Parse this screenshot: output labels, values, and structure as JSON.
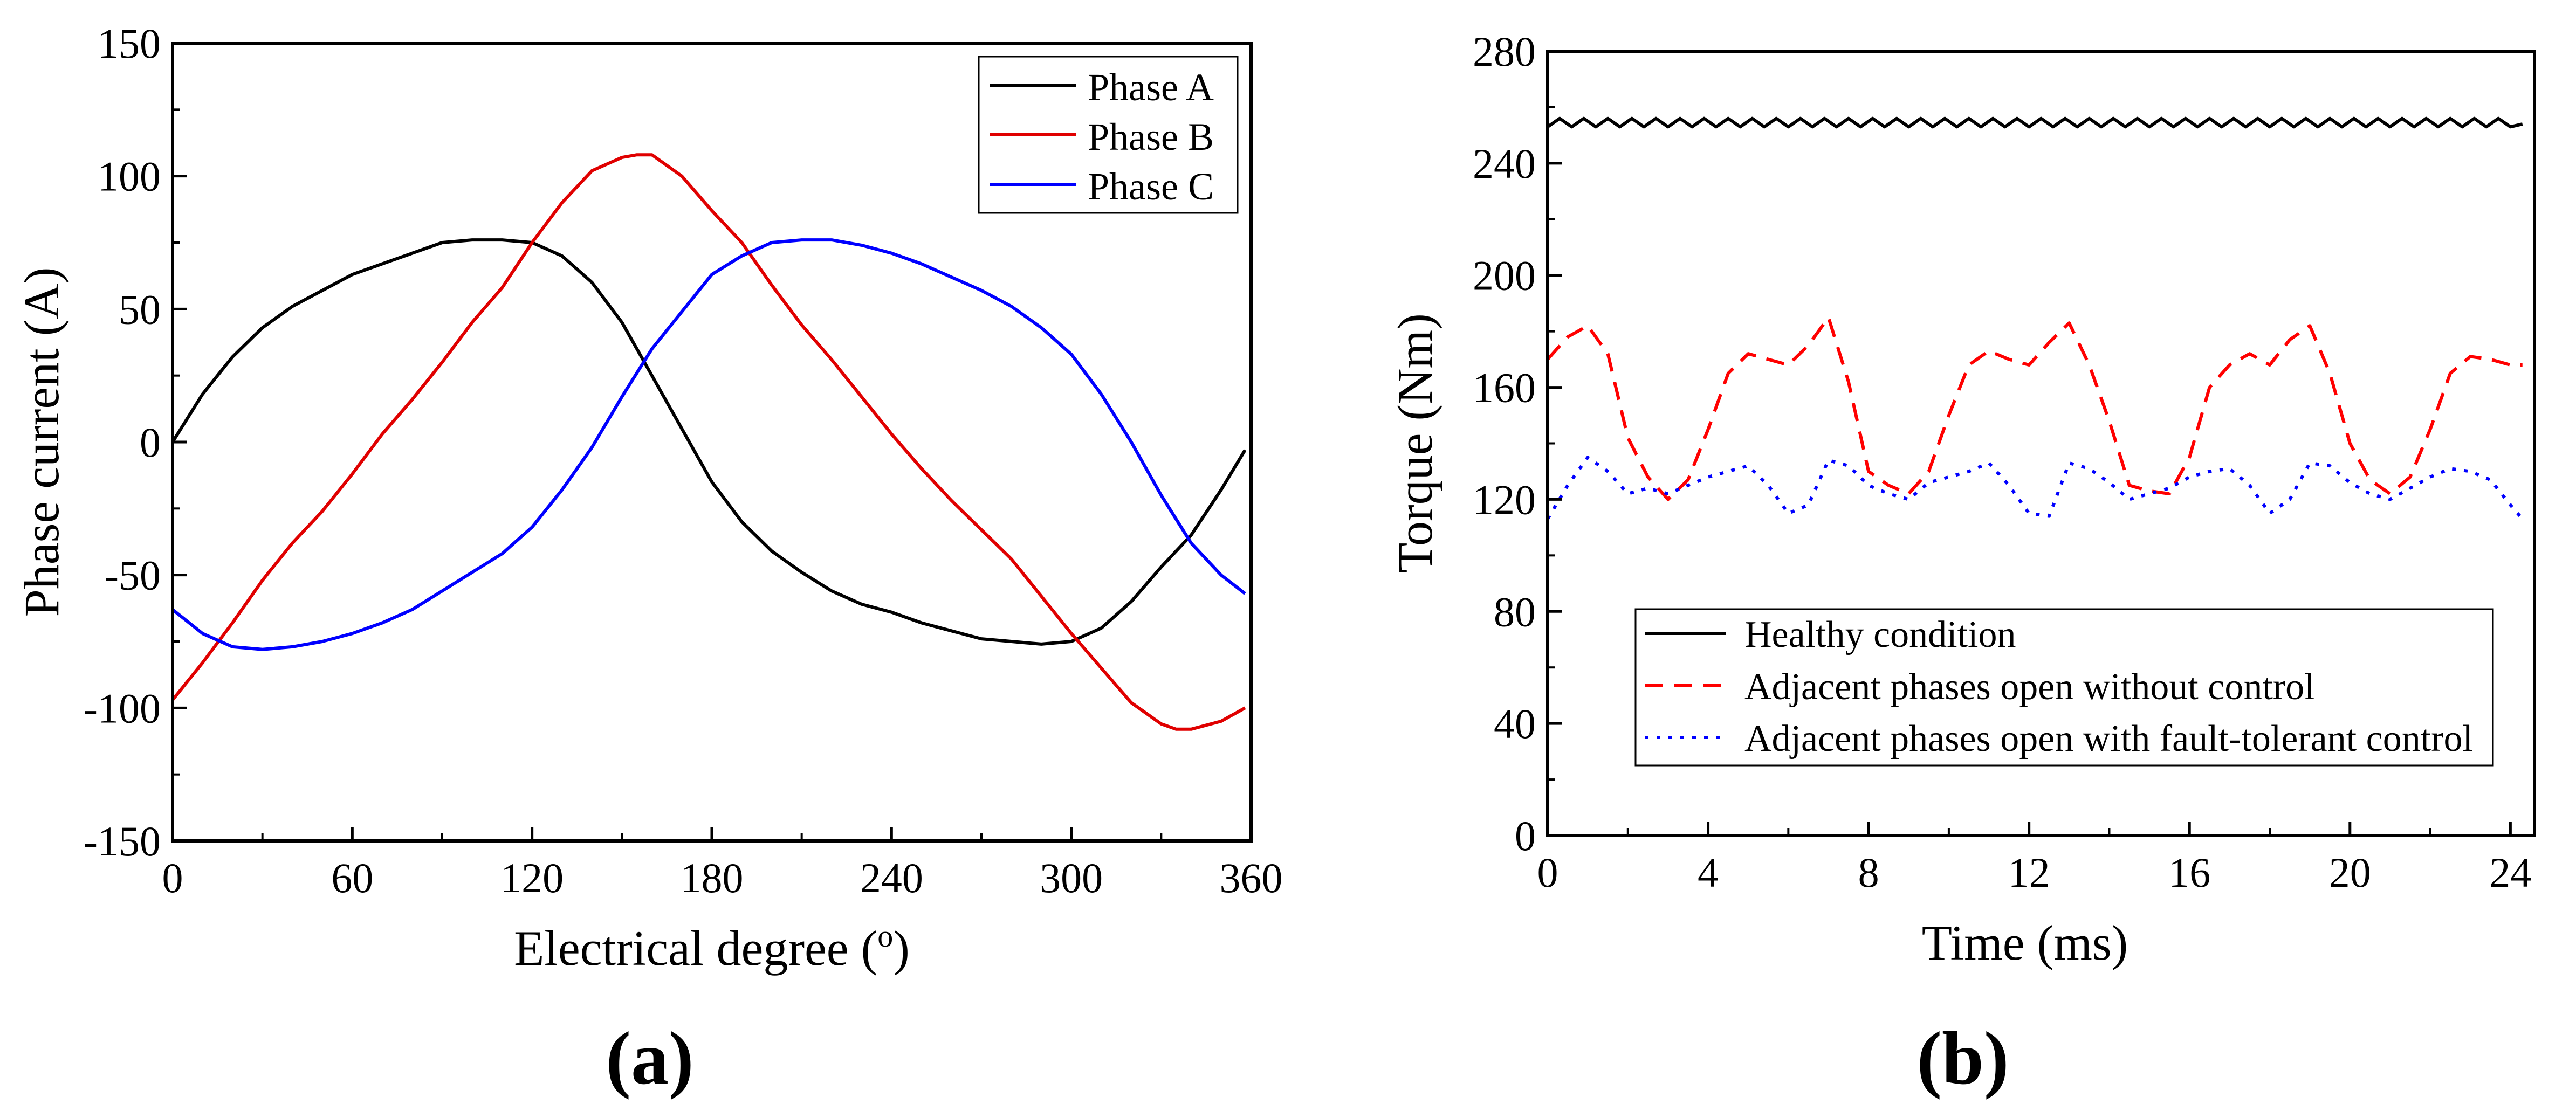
{
  "chart_data": [
    {
      "type": "line",
      "panel_label": "(a)",
      "title": "",
      "xlabel": "Electrical degree (",
      "xlabel_super": "o",
      "xlabel_end": ")",
      "ylabel": "Phase current (A)",
      "xlim": [
        0,
        360
      ],
      "ylim": [
        -150,
        150
      ],
      "xticks": [
        0,
        60,
        120,
        180,
        240,
        300,
        360
      ],
      "yticks": [
        -150,
        -100,
        -50,
        0,
        50,
        100,
        150
      ],
      "xtick_labels": [
        "0",
        "60",
        "120",
        "180",
        "240",
        "300",
        "360"
      ],
      "ytick_labels": [
        "-150",
        "-100",
        "-50",
        "0",
        "50",
        "100",
        "150"
      ],
      "grid": false,
      "legend": {
        "position": "top-right",
        "entries": [
          "Phase A",
          "Phase B",
          "Phase C"
        ]
      },
      "series": [
        {
          "name": "Phase A",
          "color": "#000000",
          "dash": "solid",
          "x": [
            0,
            10,
            20,
            30,
            40,
            50,
            60,
            75,
            90,
            100,
            110,
            120,
            130,
            140,
            150,
            160,
            170,
            180,
            190,
            200,
            210,
            220,
            230,
            240,
            250,
            260,
            270,
            280,
            290,
            300,
            310,
            320,
            330,
            340,
            350,
            358
          ],
          "values": [
            0,
            18,
            32,
            43,
            51,
            57,
            63,
            69,
            75,
            76,
            76,
            75,
            70,
            60,
            45,
            25,
            5,
            -15,
            -30,
            -41,
            -49,
            -56,
            -61,
            -64,
            -68,
            -71,
            -74,
            -75,
            -76,
            -75,
            -70,
            -60,
            -47,
            -35,
            -18,
            -3
          ]
        },
        {
          "name": "Phase B",
          "color": "#e00000",
          "dash": "solid",
          "x": [
            0,
            10,
            20,
            30,
            40,
            50,
            60,
            70,
            80,
            90,
            100,
            110,
            120,
            130,
            140,
            150,
            155,
            160,
            170,
            180,
            190,
            200,
            210,
            220,
            230,
            240,
            250,
            260,
            270,
            280,
            290,
            300,
            310,
            320,
            330,
            335,
            340,
            350,
            358
          ],
          "values": [
            -97,
            -83,
            -68,
            -52,
            -38,
            -26,
            -12,
            3,
            16,
            30,
            45,
            58,
            75,
            90,
            102,
            107,
            108,
            108,
            100,
            87,
            75,
            59,
            44,
            31,
            17,
            3,
            -10,
            -22,
            -33,
            -44,
            -58,
            -72,
            -85,
            -98,
            -106,
            -108,
            -108,
            -105,
            -100
          ]
        },
        {
          "name": "Phase C",
          "color": "#0000ff",
          "dash": "solid",
          "x": [
            0,
            10,
            20,
            30,
            40,
            50,
            60,
            70,
            80,
            90,
            100,
            110,
            120,
            130,
            140,
            150,
            160,
            170,
            180,
            190,
            200,
            210,
            220,
            230,
            240,
            250,
            260,
            270,
            280,
            290,
            300,
            310,
            320,
            330,
            340,
            350,
            358
          ],
          "values": [
            -63,
            -72,
            -77,
            -78,
            -77,
            -75,
            -72,
            -68,
            -63,
            -56,
            -49,
            -42,
            -32,
            -18,
            -2,
            17,
            35,
            49,
            63,
            70,
            75,
            76,
            76,
            74,
            71,
            67,
            62,
            57,
            51,
            43,
            33,
            18,
            0,
            -20,
            -38,
            -50,
            -57
          ]
        }
      ]
    },
    {
      "type": "line",
      "panel_label": "(b)",
      "title": "",
      "xlabel": "Time (ms)",
      "ylabel": "Torque (Nm)",
      "xlim": [
        0,
        24.6
      ],
      "ylim": [
        0,
        280
      ],
      "xticks": [
        0,
        4,
        8,
        12,
        16,
        20,
        24
      ],
      "yticks": [
        0,
        40,
        80,
        120,
        160,
        200,
        240,
        280
      ],
      "xtick_labels": [
        "0",
        "4",
        "8",
        "12",
        "16",
        "20",
        "24"
      ],
      "ytick_labels": [
        "0",
        "40",
        "80",
        "120",
        "160",
        "200",
        "240",
        "280"
      ],
      "grid": false,
      "legend": {
        "position": "bottom-center",
        "entries": [
          "Healthy condition",
          "Adjacent phases open without control",
          "Adjacent phases open with fault-tolerant control"
        ]
      },
      "series": [
        {
          "name": "Healthy condition",
          "color": "#000000",
          "dash": "solid",
          "x": [
            0,
            0.3,
            0.6,
            0.9,
            1.2,
            1.5,
            1.8,
            2.1,
            2.4,
            2.7,
            3.0,
            3.3,
            3.6,
            3.9,
            4.2,
            4.5,
            4.8,
            5.1,
            5.4,
            5.7,
            6.0,
            6.3,
            6.6,
            6.9,
            7.2,
            7.5,
            7.8,
            8.1,
            8.4,
            8.7,
            9.0,
            9.3,
            9.6,
            9.9,
            10.2,
            10.5,
            10.8,
            11.1,
            11.4,
            11.7,
            12.0,
            12.3,
            12.6,
            12.9,
            13.2,
            13.5,
            13.8,
            14.1,
            14.4,
            14.7,
            15.0,
            15.3,
            15.6,
            15.9,
            16.2,
            16.5,
            16.8,
            17.1,
            17.4,
            17.7,
            18.0,
            18.3,
            18.6,
            18.9,
            19.2,
            19.5,
            19.8,
            20.1,
            20.4,
            20.7,
            21.0,
            21.3,
            21.6,
            21.9,
            22.2,
            22.5,
            22.8,
            23.1,
            23.4,
            23.7,
            24.0,
            24.3
          ],
          "values": [
            253,
            256,
            253,
            256,
            253,
            256,
            253,
            256,
            253,
            256,
            253,
            256,
            253,
            256,
            253,
            256,
            253,
            256,
            253,
            256,
            253,
            256,
            253,
            256,
            253,
            256,
            253,
            256,
            253,
            256,
            253,
            256,
            253,
            256,
            253,
            256,
            253,
            256,
            253,
            256,
            253,
            256,
            253,
            256,
            253,
            256,
            253,
            256,
            253,
            256,
            253,
            256,
            253,
            256,
            253,
            256,
            253,
            256,
            253,
            256,
            253,
            256,
            253,
            256,
            253,
            256,
            253,
            256,
            253,
            256,
            253,
            256,
            253,
            256,
            253,
            256,
            253,
            256,
            253,
            256,
            253,
            254
          ]
        },
        {
          "name": "Adjacent phases open without control",
          "color": "#ff0000",
          "dash": "dashed",
          "x": [
            0,
            0.5,
            1.0,
            1.5,
            2.0,
            2.5,
            3.0,
            3.5,
            4.0,
            4.5,
            5.0,
            5.5,
            6.0,
            6.5,
            7.0,
            7.5,
            8.0,
            8.5,
            9.0,
            9.5,
            10.0,
            10.5,
            11.0,
            11.5,
            12.0,
            12.5,
            13.0,
            13.5,
            14.0,
            14.5,
            15.0,
            15.5,
            16.0,
            16.5,
            17.0,
            17.5,
            18.0,
            18.5,
            19.0,
            19.5,
            20.0,
            20.5,
            21.0,
            21.5,
            22.0,
            22.5,
            23.0,
            23.5,
            24.0,
            24.3
          ],
          "values": [
            170,
            178,
            182,
            172,
            142,
            128,
            120,
            127,
            145,
            165,
            172,
            170,
            168,
            175,
            185,
            162,
            130,
            125,
            122,
            130,
            150,
            168,
            173,
            170,
            168,
            176,
            183,
            168,
            148,
            125,
            123,
            122,
            135,
            160,
            168,
            172,
            168,
            177,
            182,
            165,
            140,
            127,
            122,
            128,
            145,
            165,
            171,
            170,
            168,
            168
          ]
        },
        {
          "name": "Adjacent phases open with fault-tolerant control",
          "color": "#0000ff",
          "dash": "dotted",
          "x": [
            0,
            0.5,
            1.0,
            1.5,
            2.0,
            2.5,
            3.0,
            3.5,
            4.0,
            4.5,
            5.0,
            5.5,
            6.0,
            6.5,
            7.0,
            7.5,
            8.0,
            8.5,
            9.0,
            9.5,
            10.0,
            10.5,
            11.0,
            11.5,
            12.0,
            12.5,
            13.0,
            13.5,
            14.0,
            14.5,
            15.0,
            15.5,
            16.0,
            16.5,
            17.0,
            17.5,
            18.0,
            18.5,
            19.0,
            19.5,
            20.0,
            20.5,
            21.0,
            21.5,
            22.0,
            22.5,
            23.0,
            23.5,
            24.0,
            24.3
          ],
          "values": [
            113,
            125,
            135,
            130,
            122,
            124,
            122,
            125,
            128,
            130,
            132,
            125,
            115,
            118,
            134,
            132,
            125,
            122,
            120,
            126,
            128,
            130,
            133,
            125,
            115,
            114,
            133,
            131,
            126,
            120,
            122,
            124,
            128,
            130,
            131,
            125,
            115,
            120,
            133,
            132,
            126,
            122,
            120,
            124,
            128,
            131,
            130,
            127,
            118,
            113
          ]
        }
      ]
    }
  ]
}
